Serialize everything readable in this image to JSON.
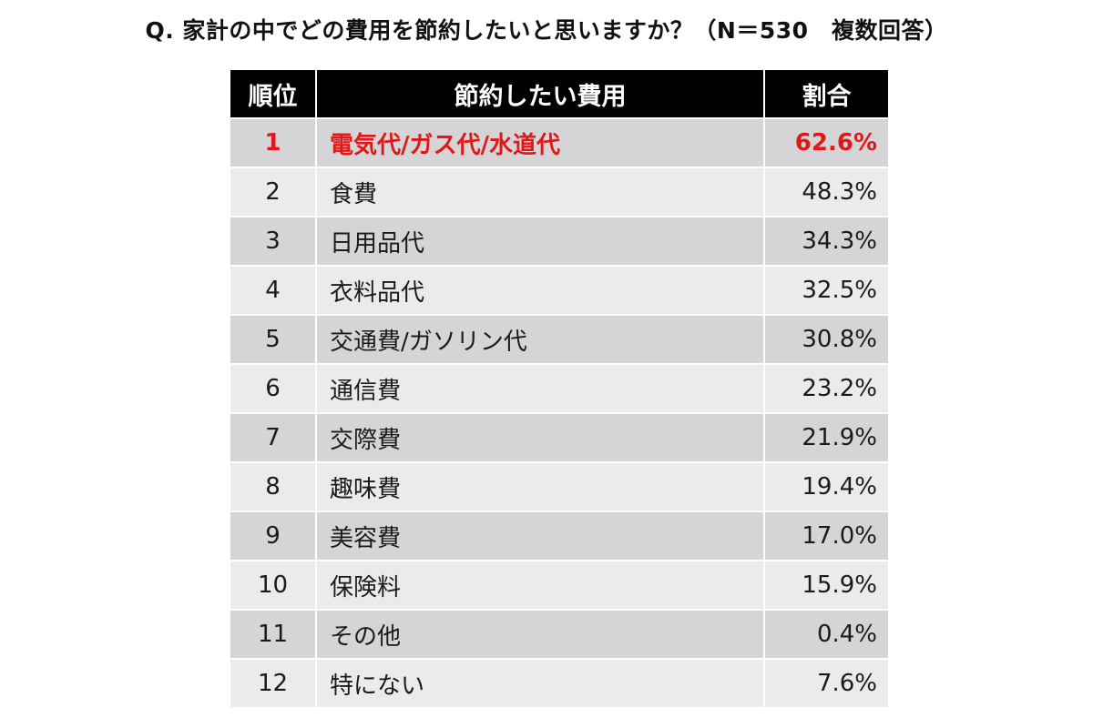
{
  "title": "Q. 家計の中でどの費用を節約したいと思いますか？（N＝530　複数回答）",
  "colors": {
    "header_bg": "#000000",
    "header_text": "#ffffff",
    "row_dark": "#d5d5d7",
    "row_light": "#ebebed",
    "highlight_text": "#e01818"
  },
  "table": {
    "headers": {
      "rank": "順位",
      "item": "節約したい費用",
      "pct": "割合"
    }
  },
  "chart_data": {
    "type": "table",
    "title": "Q. 家計の中でどの費用を節約したいと思いますか？（N＝530　複数回答）",
    "columns": [
      "順位",
      "節約したい費用",
      "割合"
    ],
    "rows": [
      {
        "rank": "1",
        "item": "電気代/ガス代/水道代",
        "pct": "62.6%",
        "value": 62.6
      },
      {
        "rank": "2",
        "item": "食費",
        "pct": "48.3%",
        "value": 48.3
      },
      {
        "rank": "3",
        "item": "日用品代",
        "pct": "34.3%",
        "value": 34.3
      },
      {
        "rank": "4",
        "item": "衣料品代",
        "pct": "32.5%",
        "value": 32.5
      },
      {
        "rank": "5",
        "item": "交通費/ガソリン代",
        "pct": "30.8%",
        "value": 30.8
      },
      {
        "rank": "6",
        "item": "通信費",
        "pct": "23.2%",
        "value": 23.2
      },
      {
        "rank": "7",
        "item": "交際費",
        "pct": "21.9%",
        "value": 21.9
      },
      {
        "rank": "8",
        "item": "趣味費",
        "pct": "19.4%",
        "value": 19.4
      },
      {
        "rank": "9",
        "item": "美容費",
        "pct": "17.0%",
        "value": 17.0
      },
      {
        "rank": "10",
        "item": "保険料",
        "pct": "15.9%",
        "value": 15.9
      },
      {
        "rank": "11",
        "item": "その他",
        "pct": "0.4%",
        "value": 0.4
      },
      {
        "rank": "12",
        "item": "特にない",
        "pct": "7.6%",
        "value": 7.6
      }
    ]
  }
}
